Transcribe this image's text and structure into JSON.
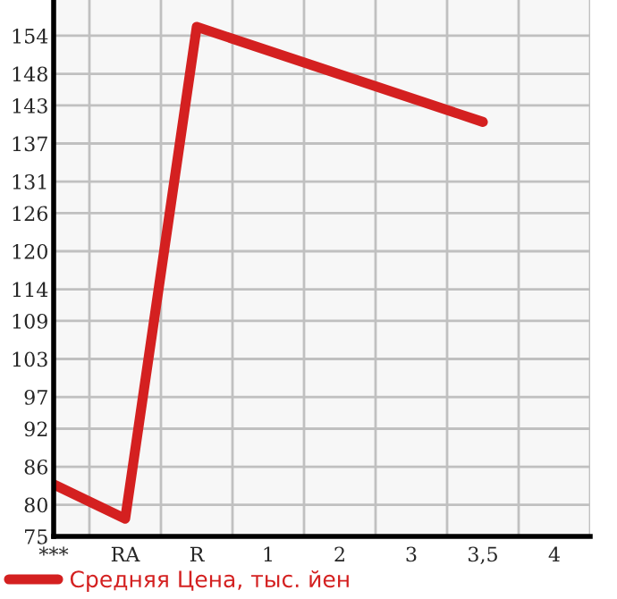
{
  "chart_data": {
    "type": "line",
    "categories": [
      "***",
      "RA",
      "R",
      "1",
      "2",
      "3",
      "3,5",
      "4"
    ],
    "series": [
      {
        "name": "Средняя Цена, тыс. йен",
        "color": "#d42020",
        "values": [
          83.2,
          77.8,
          155.4,
          null,
          null,
          null,
          140.4,
          null
        ]
      }
    ],
    "ylim": [
      75,
      159.64
    ],
    "yticks": [
      75,
      80,
      86,
      92,
      97,
      103,
      109,
      114,
      120,
      126,
      131,
      137,
      143,
      148,
      154
    ],
    "grid": true,
    "legend": "bottom left",
    "marker": "none",
    "line_style": "solid"
  }
}
